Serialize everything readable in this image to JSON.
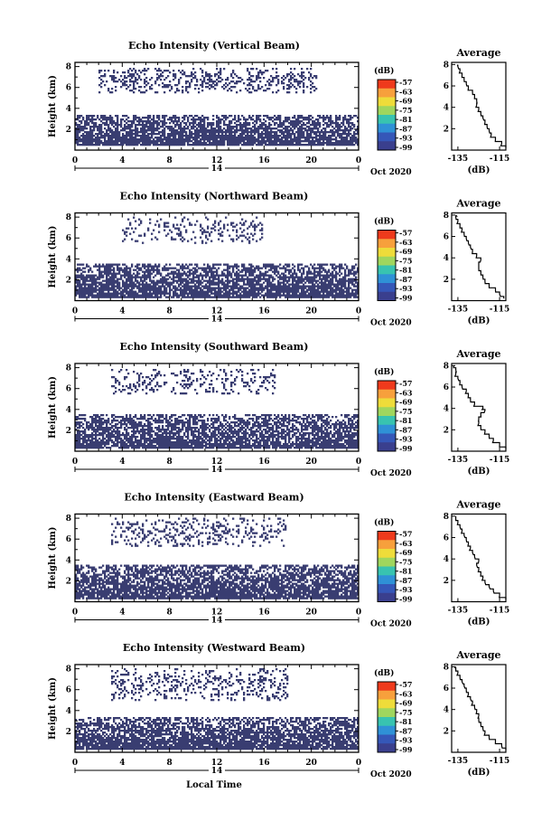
{
  "chart_data": [
    {
      "type": "heatmap",
      "title": "Echo Intensity (Vertical Beam)",
      "ylabel": "Height (km)",
      "x_ticks": [
        "0",
        "4",
        "8",
        "12",
        "16",
        "20",
        "0"
      ],
      "y_ticks": [
        "2",
        "4",
        "6",
        "8"
      ],
      "date_label": "14",
      "month_label": "Oct 2020",
      "colorbar": {
        "unit": "(dB)",
        "labels": [
          "-57",
          "-63",
          "-69",
          "-75",
          "-81",
          "-87",
          "-93",
          "-99"
        ]
      },
      "echo_bands": [
        {
          "y_from": 0.4,
          "y_to": 3.4,
          "x_from": 0.0,
          "x_to": 24.0,
          "density": 0.82
        },
        {
          "y_from": 5.5,
          "y_to": 7.9,
          "x_from": 2.0,
          "x_to": 20.5,
          "density": 0.28
        }
      ],
      "average_profile": {
        "title": "Average",
        "xlabel": "(dB)",
        "x_ticks": [
          "-135",
          "-115"
        ],
        "y_ticks": [
          "2",
          "4",
          "6",
          "8"
        ],
        "xlim": [
          -138,
          -112
        ],
        "ylim": [
          0,
          8.2
        ],
        "height": [
          0.2,
          0.6,
          1.0,
          1.4,
          1.8,
          2.2,
          2.6,
          3.0,
          3.4,
          3.8,
          4.2,
          4.6,
          5.0,
          5.4,
          5.8,
          6.2,
          6.6,
          7.0,
          7.4,
          7.8,
          8.0
        ],
        "value": [
          -112,
          -114,
          -117,
          -119,
          -120,
          -121,
          -122,
          -123,
          -124,
          -125,
          -126,
          -126,
          -127,
          -128,
          -130,
          -131,
          -132,
          -133,
          -134,
          -135,
          -135
        ]
      }
    },
    {
      "type": "heatmap",
      "title": "Echo Intensity (Northward Beam)",
      "ylabel": "Height (km)",
      "x_ticks": [
        "0",
        "4",
        "8",
        "12",
        "16",
        "20",
        "0"
      ],
      "y_ticks": [
        "2",
        "4",
        "6",
        "8"
      ],
      "date_label": "14",
      "month_label": "Oct 2020",
      "colorbar": {
        "unit": "(dB)",
        "labels": [
          "-57",
          "-63",
          "-69",
          "-75",
          "-81",
          "-87",
          "-93",
          "-99"
        ]
      },
      "echo_bands": [
        {
          "y_from": 0.3,
          "y_to": 3.5,
          "x_from": 0.0,
          "x_to": 24.0,
          "density": 0.8
        },
        {
          "y_from": 5.5,
          "y_to": 8.0,
          "x_from": 4.0,
          "x_to": 16.0,
          "density": 0.18
        }
      ],
      "average_profile": {
        "title": "Average",
        "xlabel": "(dB)",
        "x_ticks": [
          "-135",
          "-115"
        ],
        "y_ticks": [
          "2",
          "4",
          "6",
          "8"
        ],
        "xlim": [
          -138,
          -112
        ],
        "ylim": [
          0,
          8.2
        ],
        "height": [
          0.2,
          0.6,
          1.0,
          1.4,
          1.8,
          2.2,
          2.6,
          3.0,
          3.4,
          3.8,
          4.2,
          4.6,
          5.0,
          5.4,
          5.8,
          6.2,
          6.6,
          7.0,
          7.4,
          7.8,
          8.0
        ],
        "value": [
          -113,
          -115,
          -117,
          -120,
          -122,
          -123,
          -124,
          -125,
          -125,
          -124,
          -126,
          -128,
          -129,
          -130,
          -131,
          -132,
          -133,
          -134,
          -135,
          -136,
          -136
        ]
      }
    },
    {
      "type": "heatmap",
      "title": "Echo Intensity (Southward Beam)",
      "ylabel": "Height (km)",
      "x_ticks": [
        "0",
        "4",
        "8",
        "12",
        "16",
        "20",
        "0"
      ],
      "y_ticks": [
        "2",
        "4",
        "6",
        "8"
      ],
      "date_label": "14",
      "month_label": "Oct 2020",
      "colorbar": {
        "unit": "(dB)",
        "labels": [
          "-57",
          "-63",
          "-69",
          "-75",
          "-81",
          "-87",
          "-93",
          "-99"
        ]
      },
      "echo_bands": [
        {
          "y_from": 0.3,
          "y_to": 3.6,
          "x_from": 0.0,
          "x_to": 24.0,
          "density": 0.78
        },
        {
          "y_from": 5.5,
          "y_to": 7.8,
          "x_from": 3.0,
          "x_to": 17.0,
          "density": 0.2
        }
      ],
      "average_profile": {
        "title": "Average",
        "xlabel": "(dB)",
        "x_ticks": [
          "-135",
          "-115"
        ],
        "y_ticks": [
          "2",
          "4",
          "6",
          "8"
        ],
        "xlim": [
          -138,
          -112
        ],
        "ylim": [
          0,
          8.2
        ],
        "height": [
          0.2,
          0.6,
          1.0,
          1.4,
          1.8,
          2.2,
          2.6,
          3.0,
          3.4,
          3.8,
          4.0,
          4.4,
          4.8,
          5.2,
          5.6,
          6.0,
          6.4,
          6.8,
          7.2,
          7.6,
          8.0
        ],
        "value": [
          -112,
          -115,
          -118,
          -120,
          -122,
          -124,
          -125,
          -125,
          -124,
          -122,
          -123,
          -127,
          -129,
          -130,
          -131,
          -133,
          -134,
          -135,
          -136,
          -136,
          -137
        ]
      }
    },
    {
      "type": "heatmap",
      "title": "Echo Intensity (Eastward Beam)",
      "ylabel": "Height (km)",
      "x_ticks": [
        "0",
        "4",
        "8",
        "12",
        "16",
        "20",
        "0"
      ],
      "y_ticks": [
        "2",
        "4",
        "6",
        "8"
      ],
      "date_label": "14",
      "month_label": "Oct 2020",
      "colorbar": {
        "unit": "(dB)",
        "labels": [
          "-57",
          "-63",
          "-69",
          "-75",
          "-81",
          "-87",
          "-93",
          "-99"
        ]
      },
      "echo_bands": [
        {
          "y_from": 0.3,
          "y_to": 3.6,
          "x_from": 0.0,
          "x_to": 24.0,
          "density": 0.8
        },
        {
          "y_from": 5.2,
          "y_to": 8.0,
          "x_from": 3.0,
          "x_to": 18.0,
          "density": 0.2
        }
      ],
      "average_profile": {
        "title": "Average",
        "xlabel": "(dB)",
        "x_ticks": [
          "-135",
          "-115"
        ],
        "y_ticks": [
          "2",
          "4",
          "6",
          "8"
        ],
        "xlim": [
          -138,
          -112
        ],
        "ylim": [
          0,
          8.2
        ],
        "height": [
          0.2,
          0.6,
          1.0,
          1.4,
          1.8,
          2.2,
          2.6,
          3.0,
          3.4,
          3.8,
          4.2,
          4.6,
          5.0,
          5.4,
          5.8,
          6.2,
          6.6,
          7.0,
          7.4,
          7.8,
          8.0
        ],
        "value": [
          -112,
          -115,
          -118,
          -120,
          -122,
          -123,
          -124,
          -125,
          -126,
          -125,
          -127,
          -128,
          -129,
          -130,
          -131,
          -132,
          -133,
          -134,
          -135,
          -136,
          -136
        ]
      }
    },
    {
      "type": "heatmap",
      "title": "Echo Intensity (Westward Beam)",
      "ylabel": "Height (km)",
      "x_ticks": [
        "0",
        "4",
        "8",
        "12",
        "16",
        "20",
        "0"
      ],
      "y_ticks": [
        "2",
        "4",
        "6",
        "8"
      ],
      "date_label": "14",
      "month_label": "Oct 2020",
      "xlabel": "Local Time",
      "colorbar": {
        "unit": "(dB)",
        "labels": [
          "-57",
          "-63",
          "-69",
          "-75",
          "-81",
          "-87",
          "-93",
          "-99"
        ]
      },
      "echo_bands": [
        {
          "y_from": 0.3,
          "y_to": 3.4,
          "x_from": 0.0,
          "x_to": 24.0,
          "density": 0.82
        },
        {
          "y_from": 5.0,
          "y_to": 8.0,
          "x_from": 3.0,
          "x_to": 18.0,
          "density": 0.22
        }
      ],
      "average_profile": {
        "title": "Average",
        "xlabel": "(dB)",
        "x_ticks": [
          "-135",
          "-115"
        ],
        "y_ticks": [
          "2",
          "4",
          "6",
          "8"
        ],
        "xlim": [
          -138,
          -112
        ],
        "ylim": [
          0,
          8.2
        ],
        "height": [
          0.2,
          0.6,
          1.0,
          1.4,
          1.8,
          2.2,
          2.6,
          3.0,
          3.4,
          3.8,
          4.2,
          4.6,
          5.0,
          5.4,
          5.8,
          6.2,
          6.6,
          7.0,
          7.4,
          7.8,
          8.0
        ],
        "value": [
          -112,
          -114,
          -117,
          -120,
          -122,
          -123,
          -124,
          -125,
          -125,
          -126,
          -127,
          -128,
          -129,
          -130,
          -131,
          -132,
          -133,
          -134,
          -135,
          -136,
          -136
        ]
      }
    }
  ],
  "colors": {
    "echo": "#393d71",
    "colorbar": [
      "#ef3a1c",
      "#f7a03c",
      "#eedc3a",
      "#9fd65e",
      "#38c3b0",
      "#2f91d6",
      "#3557b8",
      "#3a3f8e"
    ]
  }
}
